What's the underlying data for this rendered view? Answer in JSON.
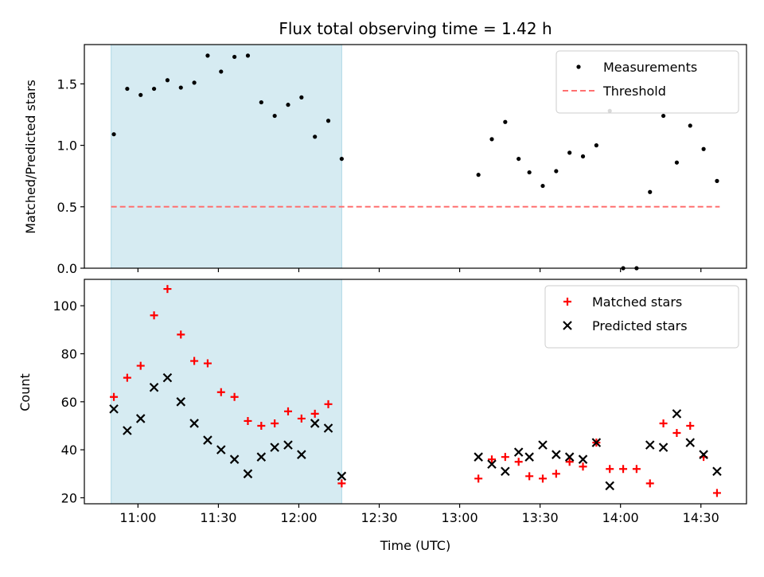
{
  "chart_data": [
    {
      "type": "scatter",
      "title": "Flux total observing time = 1.42 h",
      "ylabel": "Matched/Predicted stars",
      "xlabel": "",
      "xlim": [
        "10:40",
        "14:47"
      ],
      "ylim": [
        0,
        1.82
      ],
      "y_ticks": [
        0.0,
        0.5,
        1.0,
        1.5
      ],
      "y_tick_labels": [
        "0.0",
        "0.5",
        "1.0",
        "1.5"
      ],
      "x_ticks": [
        "11:00",
        "11:30",
        "12:00",
        "12:30",
        "13:00",
        "13:30",
        "14:00",
        "14:30"
      ],
      "x_tick_labels": [
        "",
        "",
        "",
        "",
        "",
        "",
        "",
        ""
      ],
      "highlight_span": [
        "10:50",
        "12:16"
      ],
      "highlight_color": "#add8e6",
      "legend_position": "upper right",
      "series": [
        {
          "name": "Measurements",
          "marker": "dot",
          "color": "#000000",
          "points": [
            [
              "10:51",
              1.09
            ],
            [
              "10:56",
              1.46
            ],
            [
              "11:01",
              1.41
            ],
            [
              "11:06",
              1.46
            ],
            [
              "11:11",
              1.53
            ],
            [
              "11:16",
              1.47
            ],
            [
              "11:21",
              1.51
            ],
            [
              "11:26",
              1.73
            ],
            [
              "11:31",
              1.6
            ],
            [
              "11:36",
              1.72
            ],
            [
              "11:41",
              1.73
            ],
            [
              "11:46",
              1.35
            ],
            [
              "11:51",
              1.24
            ],
            [
              "11:56",
              1.33
            ],
            [
              "12:01",
              1.39
            ],
            [
              "12:06",
              1.07
            ],
            [
              "12:11",
              1.2
            ],
            [
              "12:16",
              0.89
            ],
            [
              "13:07",
              0.76
            ],
            [
              "13:12",
              1.05
            ],
            [
              "13:17",
              1.19
            ],
            [
              "13:22",
              0.89
            ],
            [
              "13:26",
              0.78
            ],
            [
              "13:31",
              0.67
            ],
            [
              "13:36",
              0.79
            ],
            [
              "13:41",
              0.94
            ],
            [
              "13:46",
              0.91
            ],
            [
              "13:51",
              1.0
            ],
            [
              "13:56",
              1.28
            ],
            [
              "14:01",
              0.0
            ],
            [
              "14:06",
              0.0
            ],
            [
              "14:11",
              0.62
            ],
            [
              "14:16",
              1.24
            ],
            [
              "14:21",
              0.86
            ],
            [
              "14:26",
              1.16
            ],
            [
              "14:31",
              0.97
            ],
            [
              "14:36",
              0.71
            ]
          ]
        },
        {
          "name": "Threshold",
          "style": "dashed-line",
          "color": "#ff7070",
          "points": [
            [
              "10:50",
              0.5
            ],
            [
              "14:37",
              0.5
            ]
          ]
        }
      ]
    },
    {
      "type": "scatter",
      "title": "",
      "ylabel": "Count",
      "xlabel": "Time (UTC)",
      "xlim": [
        "10:40",
        "14:47"
      ],
      "ylim": [
        17.5,
        111
      ],
      "y_ticks": [
        20,
        40,
        60,
        80,
        100
      ],
      "y_tick_labels": [
        "20",
        "40",
        "60",
        "80",
        "100"
      ],
      "x_ticks": [
        "11:00",
        "11:30",
        "12:00",
        "12:30",
        "13:00",
        "13:30",
        "14:00",
        "14:30"
      ],
      "x_tick_labels": [
        "11:00",
        "11:30",
        "12:00",
        "12:30",
        "13:00",
        "13:30",
        "14:00",
        "14:30"
      ],
      "highlight_span": [
        "10:50",
        "12:16"
      ],
      "highlight_color": "#add8e6",
      "legend_position": "upper right",
      "series": [
        {
          "name": "Matched stars",
          "marker": "plus",
          "color": "#ff0000",
          "points": [
            [
              "10:51",
              62
            ],
            [
              "10:56",
              70
            ],
            [
              "11:01",
              75
            ],
            [
              "11:06",
              96
            ],
            [
              "11:11",
              107
            ],
            [
              "11:16",
              88
            ],
            [
              "11:21",
              77
            ],
            [
              "11:26",
              76
            ],
            [
              "11:31",
              64
            ],
            [
              "11:36",
              62
            ],
            [
              "11:41",
              52
            ],
            [
              "11:46",
              50
            ],
            [
              "11:51",
              51
            ],
            [
              "11:56",
              56
            ],
            [
              "12:01",
              53
            ],
            [
              "12:06",
              55
            ],
            [
              "12:11",
              59
            ],
            [
              "12:16",
              26
            ],
            [
              "13:07",
              28
            ],
            [
              "13:12",
              36
            ],
            [
              "13:17",
              37
            ],
            [
              "13:22",
              35
            ],
            [
              "13:26",
              29
            ],
            [
              "13:31",
              28
            ],
            [
              "13:36",
              30
            ],
            [
              "13:41",
              35
            ],
            [
              "13:46",
              33
            ],
            [
              "13:51",
              43
            ],
            [
              "13:56",
              32
            ],
            [
              "14:01",
              32
            ],
            [
              "14:06",
              32
            ],
            [
              "14:11",
              26
            ],
            [
              "14:16",
              51
            ],
            [
              "14:21",
              47
            ],
            [
              "14:26",
              50
            ],
            [
              "14:31",
              37
            ],
            [
              "14:36",
              22
            ]
          ]
        },
        {
          "name": "Predicted stars",
          "marker": "x",
          "color": "#000000",
          "points": [
            [
              "10:51",
              57
            ],
            [
              "10:56",
              48
            ],
            [
              "11:01",
              53
            ],
            [
              "11:06",
              66
            ],
            [
              "11:11",
              70
            ],
            [
              "11:16",
              60
            ],
            [
              "11:21",
              51
            ],
            [
              "11:26",
              44
            ],
            [
              "11:31",
              40
            ],
            [
              "11:36",
              36
            ],
            [
              "11:41",
              30
            ],
            [
              "11:46",
              37
            ],
            [
              "11:51",
              41
            ],
            [
              "11:56",
              42
            ],
            [
              "12:01",
              38
            ],
            [
              "12:06",
              51
            ],
            [
              "12:11",
              49
            ],
            [
              "12:16",
              29
            ],
            [
              "13:07",
              37
            ],
            [
              "13:12",
              34
            ],
            [
              "13:17",
              31
            ],
            [
              "13:22",
              39
            ],
            [
              "13:26",
              37
            ],
            [
              "13:31",
              42
            ],
            [
              "13:36",
              38
            ],
            [
              "13:41",
              37
            ],
            [
              "13:46",
              36
            ],
            [
              "13:51",
              43
            ],
            [
              "13:56",
              25
            ],
            [
              "14:01",
              null
            ],
            [
              "14:06",
              null
            ],
            [
              "14:11",
              42
            ],
            [
              "14:16",
              41
            ],
            [
              "14:21",
              55
            ],
            [
              "14:26",
              43
            ],
            [
              "14:31",
              38
            ],
            [
              "14:36",
              31
            ]
          ]
        }
      ]
    }
  ]
}
